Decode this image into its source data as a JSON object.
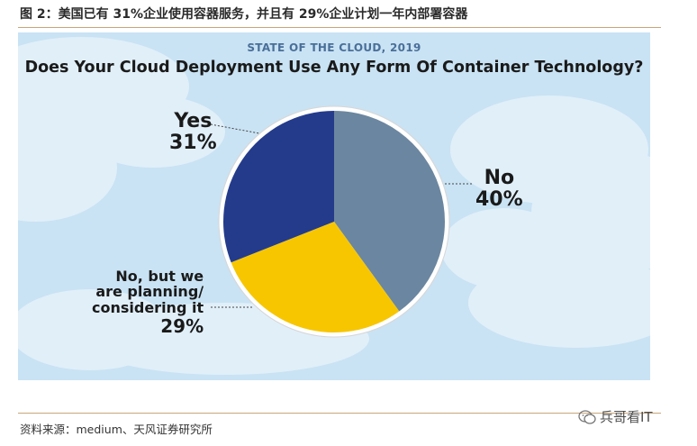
{
  "figure_title": "图 2：美国已有 31%企业使用容器服务，并且有 29%企业计划一年内部署容器",
  "source_text": "资料来源：medium、天风证券研究所",
  "watermark": "兵哥看IT",
  "colors": {
    "yes": "#243b8c",
    "no": "#6b86a0",
    "planning": "#f7c600",
    "panel_bg": "#c9e3f4",
    "cloud": "#e1eff9",
    "rule": "#c8a67a"
  },
  "chart_data": {
    "type": "pie",
    "subtitle": "STATE OF THE CLOUD, 2019",
    "title": "Does Your Cloud Deployment Use Any Form Of Container Technology?",
    "slices": [
      {
        "id": "no",
        "label": "No",
        "value": 40,
        "value_text": "40%"
      },
      {
        "id": "planning",
        "label_lines": [
          "No, but we",
          "are planning/",
          "considering it"
        ],
        "value": 29,
        "value_text": "29%"
      },
      {
        "id": "yes",
        "label": "Yes",
        "value": 31,
        "value_text": "31%"
      }
    ]
  }
}
